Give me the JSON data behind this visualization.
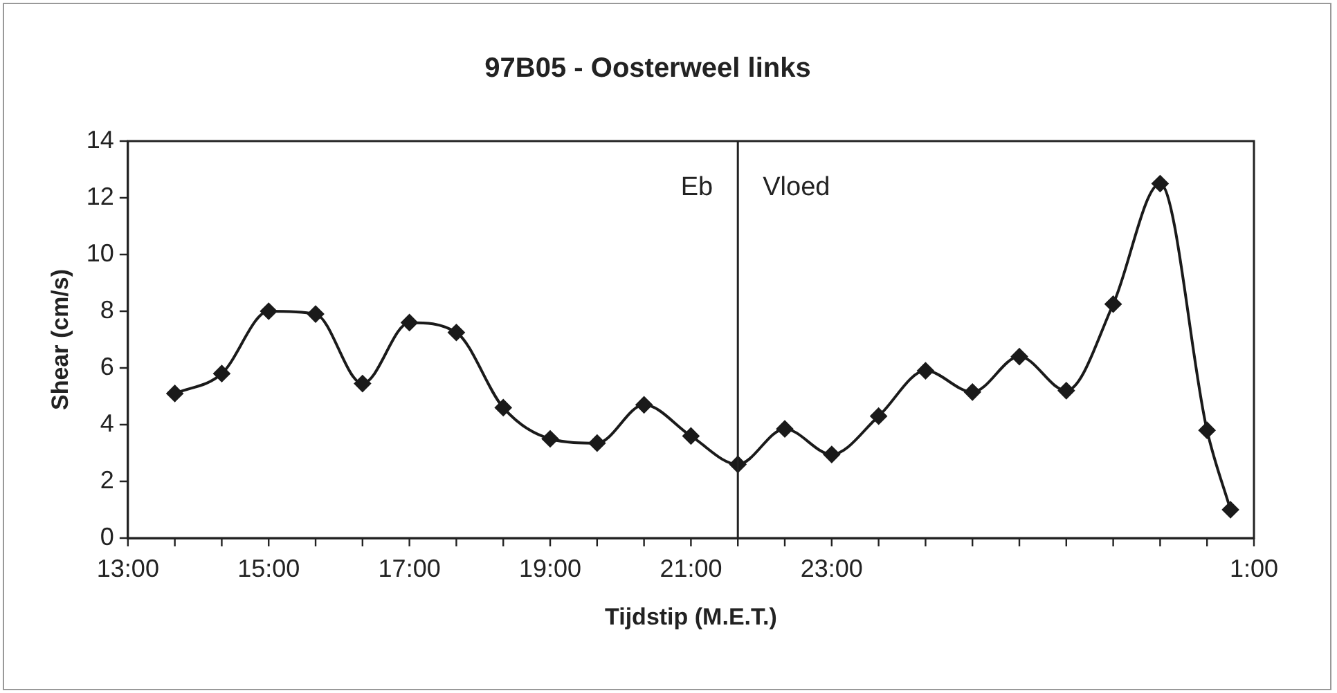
{
  "chart_data": {
    "type": "line",
    "title": "97B05 - Oosterweel links",
    "xlabel": "Tijdstip (M.E.T.)",
    "ylabel": "Shear (cm/s)",
    "categories": [
      "13:00",
      null,
      null,
      null,
      null,
      null,
      "15:00",
      null,
      null,
      null,
      null,
      null,
      "17:00",
      null,
      null,
      null,
      null,
      null,
      "19:00",
      null,
      null,
      null,
      null,
      null,
      "21:00",
      null,
      null,
      null,
      null,
      null,
      "23:00",
      null,
      null,
      null,
      null,
      null,
      null,
      null,
      null,
      null,
      null,
      null,
      null,
      null,
      null,
      null,
      null,
      null,
      "1:00"
    ],
    "series": [
      {
        "color": "#1a1a1a",
        "values": [
          null,
          null,
          5.1,
          null,
          5.8,
          null,
          8.0,
          null,
          7.9,
          null,
          5.45,
          null,
          7.6,
          null,
          7.25,
          null,
          4.6,
          null,
          3.5,
          null,
          3.35,
          null,
          4.7,
          null,
          3.6,
          null,
          2.6,
          null,
          3.85,
          null,
          2.95,
          null,
          4.3,
          null,
          5.9,
          null,
          5.15,
          null,
          6.4,
          null,
          5.2,
          null,
          8.25,
          null,
          12.5,
          null,
          3.8,
          1.0,
          null
        ]
      }
    ],
    "ylim": [
      0,
      14
    ],
    "yticks": [
      0,
      2,
      4,
      6,
      8,
      10,
      12,
      14
    ],
    "annotations": [
      "Eb",
      "Vloed"
    ],
    "marker": "diamond",
    "line_style": "solid",
    "legend": false
  }
}
